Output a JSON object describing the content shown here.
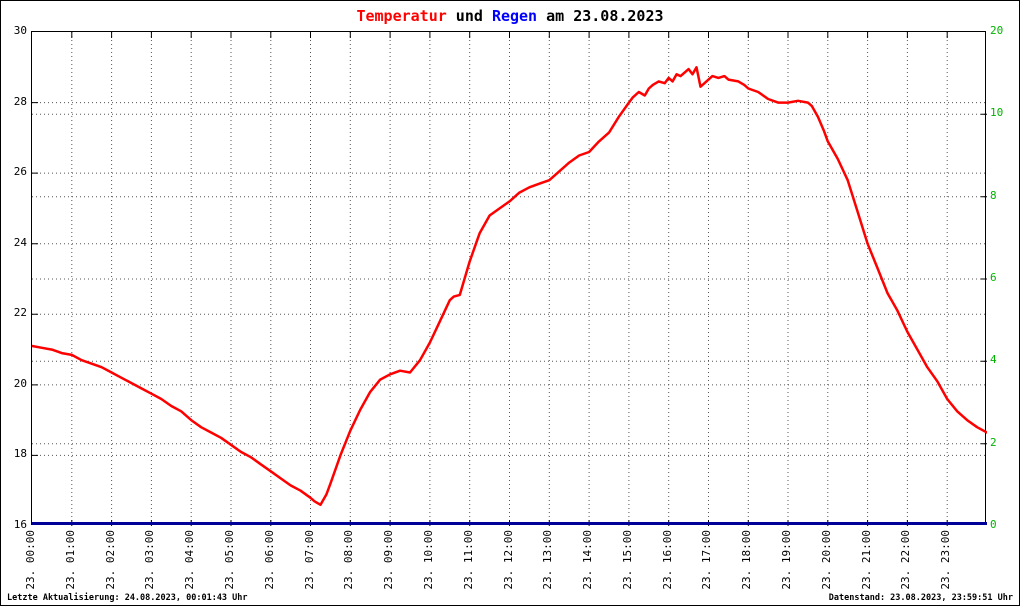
{
  "title": {
    "segments": [
      {
        "text": "Temperatur",
        "color": "#ff0000"
      },
      {
        "text": " und ",
        "color": "#000000"
      },
      {
        "text": "Regen",
        "color": "#0000ff"
      },
      {
        "text": " am 23.08.2023",
        "color": "#000000"
      }
    ]
  },
  "footer": {
    "left": "Letzte Aktualisierung: 24.08.2023, 00:01:43 Uhr",
    "right": "Datenstand: 23.08.2023, 23:59:51 Uhr"
  },
  "chart_data": {
    "type": "line",
    "title": "Temperatur und Regen am 23.08.2023",
    "grid": true,
    "x_axis": {
      "unit": "time",
      "hours_span": 24,
      "tick_labels": [
        "23. 00:00",
        "23. 01:00",
        "23. 02:00",
        "23. 03:00",
        "23. 04:00",
        "23. 05:00",
        "23. 06:00",
        "23. 07:00",
        "23. 08:00",
        "23. 09:00",
        "23. 10:00",
        "23. 11:00",
        "23. 12:00",
        "23. 13:00",
        "23. 14:00",
        "23. 15:00",
        "23. 16:00",
        "23. 17:00",
        "23. 18:00",
        "23. 19:00",
        "23. 20:00",
        "23. 21:00",
        "23. 22:00",
        "23. 23:00"
      ]
    },
    "y_left": {
      "name": "Temperatur",
      "min": 16,
      "max": 30,
      "step": 2,
      "tick_labels": [
        "30",
        "28",
        "26",
        "24",
        "22",
        "20",
        "18",
        "16"
      ],
      "color": "#000000"
    },
    "y_right": {
      "name": "Regen",
      "tick_labels": [
        "20",
        "10",
        "8",
        "6",
        "4",
        "2",
        "0"
      ],
      "color": "#00b400"
    },
    "series": [
      {
        "name": "Temperatur",
        "axis": "left",
        "color": "#ff0000",
        "points": [
          [
            0,
            21.1
          ],
          [
            0.25,
            21.05
          ],
          [
            0.5,
            21.0
          ],
          [
            0.75,
            20.9
          ],
          [
            1,
            20.85
          ],
          [
            1.25,
            20.7
          ],
          [
            1.5,
            20.6
          ],
          [
            1.75,
            20.5
          ],
          [
            2,
            20.35
          ],
          [
            2.25,
            20.2
          ],
          [
            2.5,
            20.05
          ],
          [
            2.75,
            19.9
          ],
          [
            3,
            19.75
          ],
          [
            3.25,
            19.6
          ],
          [
            3.5,
            19.4
          ],
          [
            3.75,
            19.25
          ],
          [
            4,
            19.0
          ],
          [
            4.25,
            18.8
          ],
          [
            4.5,
            18.65
          ],
          [
            4.75,
            18.5
          ],
          [
            5,
            18.3
          ],
          [
            5.25,
            18.1
          ],
          [
            5.5,
            17.95
          ],
          [
            5.75,
            17.75
          ],
          [
            6,
            17.55
          ],
          [
            6.25,
            17.35
          ],
          [
            6.5,
            17.15
          ],
          [
            6.75,
            17.0
          ],
          [
            7,
            16.8
          ],
          [
            7.1,
            16.7
          ],
          [
            7.25,
            16.6
          ],
          [
            7.4,
            16.9
          ],
          [
            7.5,
            17.2
          ],
          [
            7.75,
            18.0
          ],
          [
            8,
            18.7
          ],
          [
            8.25,
            19.3
          ],
          [
            8.5,
            19.8
          ],
          [
            8.75,
            20.15
          ],
          [
            9,
            20.3
          ],
          [
            9.25,
            20.4
          ],
          [
            9.5,
            20.35
          ],
          [
            9.75,
            20.7
          ],
          [
            10,
            21.2
          ],
          [
            10.25,
            21.8
          ],
          [
            10.5,
            22.4
          ],
          [
            10.6,
            22.5
          ],
          [
            10.75,
            22.55
          ],
          [
            11,
            23.5
          ],
          [
            11.25,
            24.3
          ],
          [
            11.5,
            24.8
          ],
          [
            11.75,
            25.0
          ],
          [
            12,
            25.2
          ],
          [
            12.25,
            25.45
          ],
          [
            12.5,
            25.6
          ],
          [
            12.75,
            25.7
          ],
          [
            13,
            25.8
          ],
          [
            13.25,
            26.05
          ],
          [
            13.5,
            26.3
          ],
          [
            13.75,
            26.5
          ],
          [
            14,
            26.6
          ],
          [
            14.25,
            26.9
          ],
          [
            14.5,
            27.15
          ],
          [
            14.75,
            27.6
          ],
          [
            15,
            28.0
          ],
          [
            15.1,
            28.15
          ],
          [
            15.25,
            28.3
          ],
          [
            15.4,
            28.2
          ],
          [
            15.5,
            28.4
          ],
          [
            15.6,
            28.5
          ],
          [
            15.75,
            28.6
          ],
          [
            15.9,
            28.55
          ],
          [
            16,
            28.7
          ],
          [
            16.1,
            28.6
          ],
          [
            16.2,
            28.8
          ],
          [
            16.3,
            28.75
          ],
          [
            16.4,
            28.85
          ],
          [
            16.5,
            28.95
          ],
          [
            16.6,
            28.8
          ],
          [
            16.7,
            29.0
          ],
          [
            16.8,
            28.45
          ],
          [
            16.9,
            28.55
          ],
          [
            17,
            28.65
          ],
          [
            17.1,
            28.75
          ],
          [
            17.25,
            28.7
          ],
          [
            17.4,
            28.75
          ],
          [
            17.5,
            28.65
          ],
          [
            17.75,
            28.6
          ],
          [
            17.9,
            28.5
          ],
          [
            18,
            28.4
          ],
          [
            18.25,
            28.3
          ],
          [
            18.5,
            28.1
          ],
          [
            18.75,
            28.0
          ],
          [
            19,
            28.0
          ],
          [
            19.25,
            28.05
          ],
          [
            19.5,
            28.0
          ],
          [
            19.6,
            27.9
          ],
          [
            19.75,
            27.6
          ],
          [
            19.9,
            27.2
          ],
          [
            20,
            26.9
          ],
          [
            20.25,
            26.4
          ],
          [
            20.5,
            25.8
          ],
          [
            20.75,
            24.9
          ],
          [
            21,
            24.0
          ],
          [
            21.25,
            23.3
          ],
          [
            21.5,
            22.6
          ],
          [
            21.75,
            22.1
          ],
          [
            22,
            21.5
          ],
          [
            22.25,
            21.0
          ],
          [
            22.5,
            20.5
          ],
          [
            22.75,
            20.1
          ],
          [
            23,
            19.6
          ],
          [
            23.25,
            19.25
          ],
          [
            23.5,
            19.0
          ],
          [
            23.75,
            18.8
          ],
          [
            24,
            18.65
          ]
        ]
      },
      {
        "name": "Regen",
        "axis": "right",
        "color": "#000099",
        "constant_value": 0
      }
    ]
  }
}
